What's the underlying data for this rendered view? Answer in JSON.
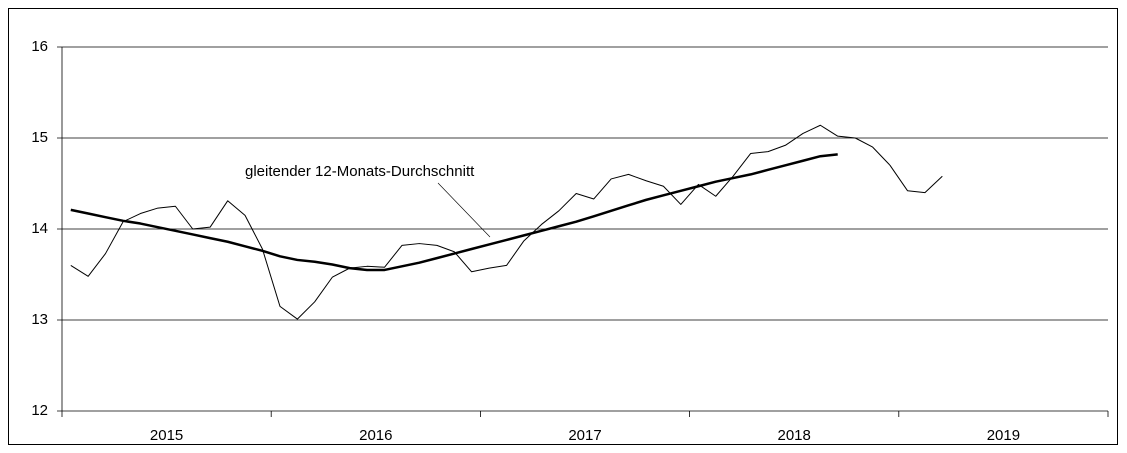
{
  "chart_data": {
    "type": "line",
    "annotation": "gleitender 12-Monats-Durchschnitt",
    "x": [
      2015.042,
      2015.125,
      2015.208,
      2015.292,
      2015.375,
      2015.458,
      2015.542,
      2015.625,
      2015.708,
      2015.792,
      2015.875,
      2015.958,
      2016.042,
      2016.125,
      2016.208,
      2016.292,
      2016.375,
      2016.458,
      2016.542,
      2016.625,
      2016.708,
      2016.792,
      2016.875,
      2016.958,
      2017.042,
      2017.125,
      2017.208,
      2017.292,
      2017.375,
      2017.458,
      2017.542,
      2017.625,
      2017.708,
      2017.792,
      2017.875,
      2017.958,
      2018.042,
      2018.125,
      2018.208,
      2018.292,
      2018.375,
      2018.458,
      2018.542,
      2018.625,
      2018.708,
      2018.792,
      2018.875,
      2018.958,
      2019.042,
      2019.125,
      2019.208
    ],
    "series": [
      {
        "color": "#000000",
        "width": 1,
        "values": [
          13.6,
          13.48,
          13.73,
          14.08,
          14.17,
          14.23,
          14.25,
          14.0,
          14.02,
          14.31,
          14.15,
          13.78,
          13.15,
          13.01,
          13.2,
          13.47,
          13.57,
          13.59,
          13.58,
          13.82,
          13.84,
          13.82,
          13.75,
          13.53,
          13.57,
          13.6,
          13.87,
          14.05,
          14.2,
          14.39,
          14.33,
          14.55,
          14.6,
          14.53,
          14.47,
          14.27,
          14.49,
          14.36,
          14.58,
          14.83,
          14.85,
          14.92,
          15.05,
          15.14,
          15.02,
          15.0,
          14.9,
          14.7,
          14.42,
          14.4,
          14.58
        ]
      },
      {
        "color": "#000000",
        "width": 2.5,
        "values": [
          14.21,
          14.17,
          14.13,
          14.09,
          14.06,
          14.02,
          13.98,
          13.94,
          13.9,
          13.86,
          13.81,
          13.76,
          13.7,
          13.66,
          13.64,
          13.61,
          13.57,
          13.55,
          13.55,
          13.59,
          13.63,
          13.68,
          13.73,
          13.78,
          13.83,
          13.88,
          13.93,
          13.98,
          14.03,
          14.08,
          14.14,
          14.2,
          14.26,
          14.32,
          14.37,
          14.42,
          14.47,
          14.52,
          14.56,
          14.6,
          14.65,
          14.7,
          14.75,
          14.8,
          14.82,
          null,
          null,
          null,
          null,
          null,
          null
        ]
      }
    ],
    "xlim": [
      2015,
      2020
    ],
    "xticks": [
      2015,
      2016,
      2017,
      2018,
      2019,
      2020
    ],
    "year_labels": [
      "2015",
      "2016",
      "2017",
      "2018",
      "2019"
    ],
    "ylim": [
      12,
      16
    ],
    "yticks": [
      12,
      13,
      14,
      15,
      16
    ],
    "grid": true
  }
}
